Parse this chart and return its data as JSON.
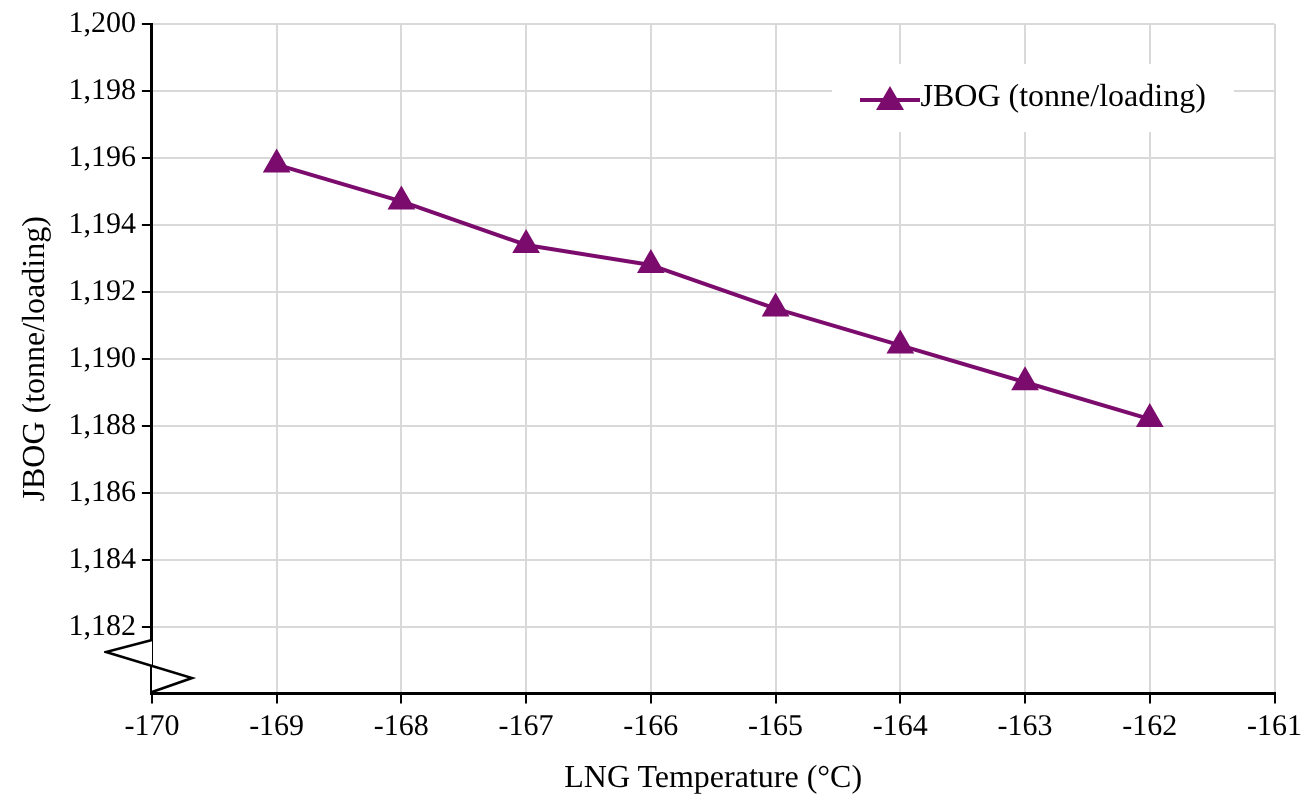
{
  "chart_data": {
    "type": "line",
    "xlabel": "LNG Temperature (°C)",
    "ylabel": "JBOG (tonne/loading)",
    "x": [
      -169,
      -168,
      -167,
      -166,
      -165,
      -164,
      -163,
      -162
    ],
    "series": [
      {
        "name": "JBOG (tonne/loading)",
        "color": "#7b0c6e",
        "values": [
          1195.8,
          1194.7,
          1193.4,
          1192.8,
          1191.5,
          1190.4,
          1189.3,
          1188.2
        ]
      }
    ],
    "xlim": [
      -170,
      -161
    ],
    "xticks": [
      -170,
      -169,
      -168,
      -167,
      -166,
      -165,
      -164,
      -163,
      -162,
      -161
    ],
    "ylim": [
      1180,
      1200
    ],
    "yticks": [
      {
        "value": 1182,
        "label": "1,182"
      },
      {
        "value": 1184,
        "label": "1,184"
      },
      {
        "value": 1186,
        "label": "1,186"
      },
      {
        "value": 1188,
        "label": "1,188"
      },
      {
        "value": 1190,
        "label": "1,190"
      },
      {
        "value": 1192,
        "label": "1,192"
      },
      {
        "value": 1194,
        "label": "1,194"
      },
      {
        "value": 1196,
        "label": "1,196"
      },
      {
        "value": 1198,
        "label": "1,198"
      },
      {
        "value": 1200,
        "label": "1,200"
      }
    ],
    "grid": true,
    "legend": "top right",
    "marker": "triangle",
    "line_style": "solid"
  }
}
